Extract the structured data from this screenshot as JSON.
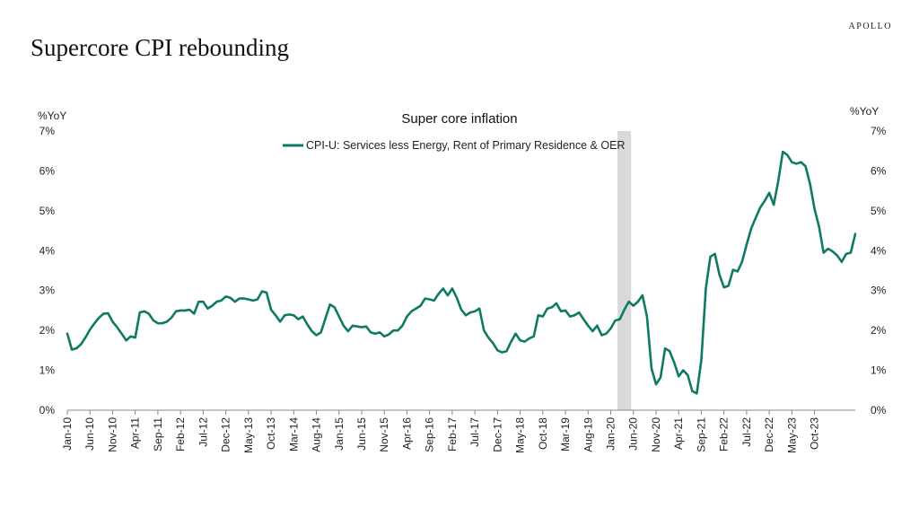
{
  "header": {
    "title": "Supercore CPI rebounding",
    "brand": "APOLLO"
  },
  "colors": {
    "line": "#0e7a63",
    "recession": "#d9d9d9",
    "axis": "#888888"
  },
  "chart_data": {
    "type": "line",
    "title": "Super core inflation",
    "ylabel_left": "%YoY",
    "ylabel_right": "%YoY",
    "ylim": [
      0,
      7
    ],
    "yticks": [
      "0%",
      "1%",
      "2%",
      "3%",
      "4%",
      "5%",
      "6%",
      "7%"
    ],
    "x_start": "Jan-10",
    "x_end": "Mar-24",
    "x_tick_labels": [
      "Jan-10",
      "Jun-10",
      "Nov-10",
      "Apr-11",
      "Sep-11",
      "Feb-12",
      "Jul-12",
      "Dec-12",
      "May-13",
      "Oct-13",
      "Mar-14",
      "Aug-14",
      "Jan-15",
      "Jun-15",
      "Nov-15",
      "Apr-16",
      "Sep-16",
      "Feb-17",
      "Jul-17",
      "Dec-17",
      "May-18",
      "Oct-18",
      "Mar-19",
      "Aug-19",
      "Jan-20",
      "Jun-20",
      "Nov-20",
      "Apr-21",
      "Sep-21",
      "Feb-22",
      "Jul-22",
      "Dec-22",
      "May-23",
      "Oct-23"
    ],
    "shaded_period": {
      "label": "recession",
      "start_index": 122,
      "end_index": 124
    },
    "series": [
      {
        "name": "CPI-U: Services less Energy, Rent of Primary Residence & OER",
        "values": [
          1.92,
          1.52,
          1.55,
          1.65,
          1.82,
          2.02,
          2.18,
          2.32,
          2.42,
          2.43,
          2.22,
          2.08,
          1.92,
          1.75,
          1.85,
          1.82,
          2.45,
          2.48,
          2.42,
          2.25,
          2.18,
          2.18,
          2.22,
          2.32,
          2.48,
          2.5,
          2.5,
          2.52,
          2.42,
          2.72,
          2.72,
          2.55,
          2.62,
          2.72,
          2.75,
          2.85,
          2.82,
          2.72,
          2.8,
          2.8,
          2.78,
          2.75,
          2.78,
          2.98,
          2.95,
          2.52,
          2.38,
          2.22,
          2.38,
          2.4,
          2.38,
          2.28,
          2.35,
          2.15,
          1.98,
          1.88,
          1.95,
          2.3,
          2.65,
          2.58,
          2.35,
          2.12,
          1.98,
          2.12,
          2.1,
          2.08,
          2.1,
          1.95,
          1.92,
          1.95,
          1.85,
          1.9,
          2.0,
          2.0,
          2.12,
          2.35,
          2.48,
          2.55,
          2.62,
          2.8,
          2.78,
          2.75,
          2.92,
          3.05,
          2.88,
          3.05,
          2.82,
          2.52,
          2.38,
          2.45,
          2.48,
          2.55,
          2.0,
          1.82,
          1.68,
          1.5,
          1.45,
          1.48,
          1.72,
          1.92,
          1.75,
          1.72,
          1.8,
          1.85,
          2.38,
          2.35,
          2.55,
          2.58,
          2.68,
          2.48,
          2.5,
          2.35,
          2.38,
          2.45,
          2.28,
          2.12,
          1.98,
          2.12,
          1.88,
          1.92,
          2.05,
          2.25,
          2.28,
          2.52,
          2.72,
          2.62,
          2.72,
          2.88,
          2.35,
          1.05,
          0.65,
          0.82,
          1.55,
          1.48,
          1.2,
          0.85,
          1.0,
          0.88,
          0.48,
          0.42,
          1.25,
          3.05,
          3.85,
          3.92,
          3.4,
          3.08,
          3.12,
          3.52,
          3.48,
          3.72,
          4.15,
          4.55,
          4.82,
          5.08,
          5.25,
          5.45,
          5.15,
          5.75,
          6.48,
          6.4,
          6.22,
          6.18,
          6.22,
          6.12,
          5.68,
          5.05,
          4.6,
          3.95,
          4.05,
          3.98,
          3.88,
          3.72,
          3.92,
          3.95,
          4.42
        ]
      }
    ]
  }
}
